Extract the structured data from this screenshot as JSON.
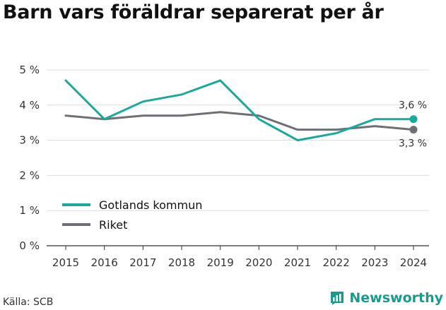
{
  "title": "Barn vars föräldrar separerat per år",
  "source": "Källa: SCB",
  "brand": "Newsworthy",
  "colors": {
    "gotland": "#1aa99b",
    "riket": "#6f6f76",
    "grid": "#dddddd",
    "axis": "#333333"
  },
  "icons": {
    "brand": "bar-chart-speech-icon"
  },
  "chart_data": {
    "type": "line",
    "x": [
      2015,
      2016,
      2017,
      2018,
      2019,
      2020,
      2021,
      2022,
      2023,
      2024
    ],
    "x_tick_labels": [
      "2015",
      "2016",
      "2017",
      "2018",
      "2019",
      "2020",
      "2021",
      "2022",
      "2023",
      "2024"
    ],
    "ylim": [
      0,
      5
    ],
    "y_ticks": [
      0,
      1,
      2,
      3,
      4,
      5
    ],
    "y_tick_labels": [
      "0 %",
      "1 %",
      "2 %",
      "3 %",
      "4 %",
      "5 %"
    ],
    "grid": true,
    "legend_position": "bottom-left",
    "series": [
      {
        "name": "Gotlands kommun",
        "color": "#1aa99b",
        "values": [
          4.7,
          3.6,
          4.1,
          4.3,
          4.7,
          3.6,
          3.0,
          3.2,
          3.6,
          3.6
        ],
        "end_label": "3,6 %"
      },
      {
        "name": "Riket",
        "color": "#6f6f76",
        "values": [
          3.7,
          3.6,
          3.7,
          3.7,
          3.8,
          3.7,
          3.3,
          3.3,
          3.4,
          3.3
        ],
        "end_label": "3,3 %"
      }
    ]
  }
}
